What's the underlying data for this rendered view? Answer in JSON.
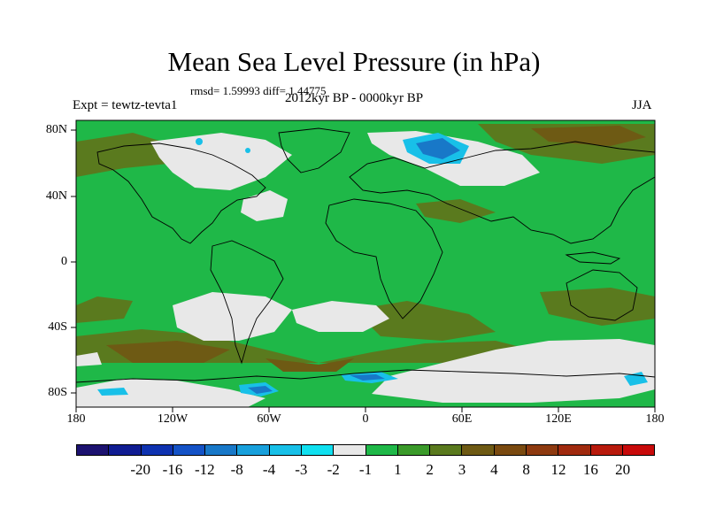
{
  "title": "Mean Sea Level Pressure (in hPa)",
  "stats": "rmsd= 1.59993 diff= 1.44775",
  "experiment": "Expt = tewtz-tevta1",
  "period": "2012kyr BP - 0000kyr BP",
  "season": "JJA",
  "y_ticks": [
    "80N",
    "40N",
    "0",
    "40S",
    "80S"
  ],
  "x_ticks": [
    "180",
    "120W",
    "60W",
    "0",
    "60E",
    "120E",
    "180"
  ],
  "colors": {
    "background_field": "#1fb848",
    "neutral": "#e8e8e8",
    "brown_light": "#5a7a1e",
    "brown": "#6e5a14",
    "blue_light": "#18c0e8",
    "blue": "#1878c8",
    "coast": "#000000"
  },
  "colorbar": {
    "colors": [
      "#1c1270",
      "#101c92",
      "#0e32b0",
      "#1452c6",
      "#1878c8",
      "#18a0dc",
      "#18c0e8",
      "#10e0f0",
      "#e8e8e8",
      "#1fb848",
      "#3a9a2a",
      "#5a7a1e",
      "#6e5a14",
      "#7a4a10",
      "#8e3a10",
      "#a02a0e",
      "#b81a0c",
      "#c80a0a"
    ],
    "labels": [
      "-20",
      "-16",
      "-12",
      "-8",
      "-4",
      "-3",
      "-2",
      "-1",
      "1",
      "2",
      "3",
      "4",
      "8",
      "12",
      "16",
      "20"
    ]
  }
}
